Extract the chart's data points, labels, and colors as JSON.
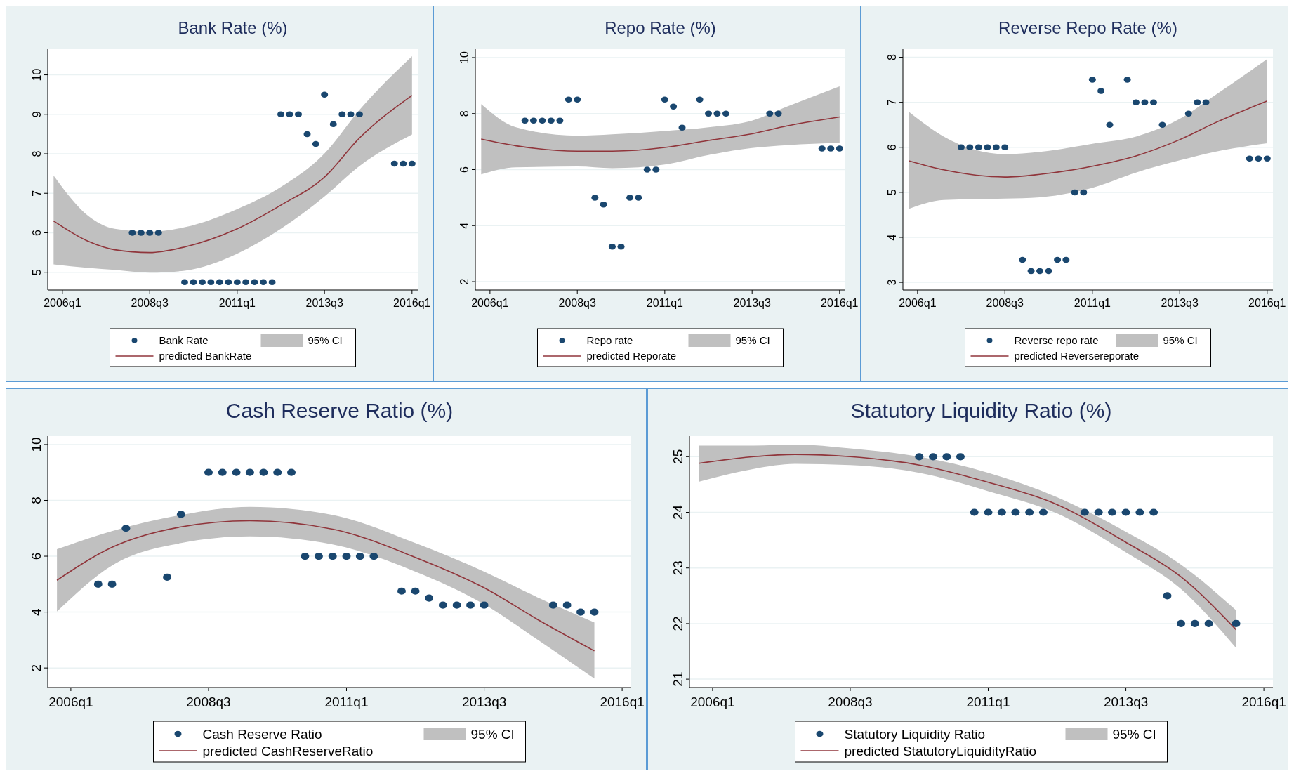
{
  "chart_data": [
    {
      "type": "scatter",
      "title": "Bank Rate (%)",
      "annotations": [
        "95% CI"
      ],
      "xlim": [
        "2005-08",
        "2016-03"
      ],
      "xticks": [
        {
          "value": "2006-01",
          "label": "2006q1"
        },
        {
          "value": "2008-07",
          "label": "2008q3"
        },
        {
          "value": "2011-01",
          "label": "2011q1"
        },
        {
          "value": "2013-07",
          "label": "2013q3"
        },
        {
          "value": "2016-01",
          "label": "2016q1"
        }
      ],
      "ylim": [
        4.55,
        10.65
      ],
      "yticks": [
        5,
        6,
        7,
        8,
        9,
        10
      ],
      "grid": "y",
      "legend": "bottom",
      "marker": "circle",
      "series": [
        {
          "name": "Bank Rate",
          "color": "#1a476f",
          "x": [
            "2008-01",
            "2008-04",
            "2008-07",
            "2008-10",
            "2009-07",
            "2009-10",
            "2010-01",
            "2010-04",
            "2010-07",
            "2010-10",
            "2011-01",
            "2011-04",
            "2011-07",
            "2011-10",
            "2012-01",
            "2012-04",
            "2012-07",
            "2012-10",
            "2013-01",
            "2013-04",
            "2013-07",
            "2013-10",
            "2014-01",
            "2014-04",
            "2014-07",
            "2015-07",
            "2015-10",
            "2016-01"
          ],
          "values": [
            6,
            6,
            6,
            6,
            4.75,
            4.75,
            4.75,
            4.75,
            4.75,
            4.75,
            4.75,
            4.75,
            4.75,
            4.75,
            4.75,
            9,
            9,
            9,
            8.5,
            8.25,
            9.5,
            8.75,
            9,
            9,
            9,
            7.75,
            7.75,
            7.75
          ]
        },
        {
          "name": "predicted BankRate",
          "type": "line",
          "marker": "none",
          "color": "#90353b",
          "x": [
            "2005-10",
            "2006-10",
            "2007-07",
            "2008-07",
            "2009-07",
            "2011-01",
            "2012-04",
            "2013-07",
            "2014-07",
            "2016-01"
          ],
          "values": [
            6.3,
            5.78,
            5.57,
            5.5,
            5.64,
            6.1,
            6.7,
            7.41,
            8.4,
            9.48
          ],
          "lower": [
            5.2,
            5.11,
            5.06,
            4.99,
            5.04,
            5.47,
            6.1,
            6.92,
            7.69,
            8.49
          ],
          "upper": [
            7.45,
            6.42,
            6.1,
            6.03,
            6.14,
            6.6,
            7.16,
            8.01,
            9.11,
            10.47
          ]
        }
      ]
    },
    {
      "type": "scatter",
      "title": "Repo Rate (%)",
      "annotations": [
        "95% CI"
      ],
      "xlim": [
        "2005-08",
        "2016-03"
      ],
      "xticks": [
        {
          "value": "2006-01",
          "label": "2006q1"
        },
        {
          "value": "2008-07",
          "label": "2008q3"
        },
        {
          "value": "2011-01",
          "label": "2011q1"
        },
        {
          "value": "2013-07",
          "label": "2013q3"
        },
        {
          "value": "2016-01",
          "label": "2016q1"
        }
      ],
      "ylim": [
        1.7,
        10.3
      ],
      "yticks": [
        2,
        4,
        6,
        8,
        10
      ],
      "grid": "y",
      "legend": "bottom",
      "marker": "circle",
      "series": [
        {
          "name": "Repo rate",
          "color": "#1a476f",
          "x": [
            "2007-01",
            "2007-04",
            "2007-07",
            "2007-10",
            "2008-01",
            "2008-04",
            "2008-07",
            "2009-01",
            "2009-04",
            "2009-07",
            "2009-10",
            "2010-01",
            "2010-04",
            "2010-07",
            "2010-10",
            "2011-01",
            "2011-04",
            "2011-07",
            "2012-01",
            "2012-04",
            "2012-07",
            "2012-10",
            "2014-01",
            "2014-04",
            "2015-07",
            "2015-10",
            "2016-01"
          ],
          "values": [
            7.75,
            7.75,
            7.75,
            7.75,
            7.75,
            8.5,
            8.5,
            5,
            4.75,
            3.25,
            3.25,
            5,
            5,
            6,
            6,
            8.5,
            8.25,
            7.5,
            8.5,
            8,
            8,
            8,
            8,
            8,
            6.75,
            6.75,
            6.75
          ]
        },
        {
          "name": "predicted Reporate",
          "type": "line",
          "marker": "none",
          "color": "#90353b",
          "x": [
            "2005-10",
            "2006-10",
            "2008-07",
            "2009-07",
            "2011-01",
            "2012-04",
            "2013-07",
            "2014-07",
            "2016-01"
          ],
          "values": [
            7.09,
            6.85,
            6.66,
            6.66,
            6.79,
            7.04,
            7.28,
            7.56,
            7.88
          ],
          "lower": [
            5.83,
            6.08,
            6.11,
            6.05,
            6.18,
            6.52,
            6.77,
            6.87,
            6.95
          ],
          "upper": [
            8.34,
            7.51,
            7.21,
            7.26,
            7.38,
            7.51,
            7.75,
            8.25,
            8.97
          ]
        }
      ]
    },
    {
      "type": "scatter",
      "title": "Reverse Repo Rate (%)",
      "annotations": [
        "95% CI"
      ],
      "xlim": [
        "2005-08",
        "2016-03"
      ],
      "xticks": [
        {
          "value": "2006-01",
          "label": "2006q1"
        },
        {
          "value": "2008-07",
          "label": "2008q3"
        },
        {
          "value": "2011-01",
          "label": "2011q1"
        },
        {
          "value": "2013-07",
          "label": "2013q3"
        },
        {
          "value": "2016-01",
          "label": "2016q1"
        }
      ],
      "ylim": [
        2.83,
        8.18
      ],
      "yticks": [
        3,
        4,
        5,
        6,
        7,
        8
      ],
      "grid": "y",
      "legend": "bottom",
      "marker": "circle",
      "series": [
        {
          "name": "Reverse repo rate",
          "color": "#1a476f",
          "x": [
            "2007-04",
            "2007-07",
            "2007-10",
            "2008-01",
            "2008-04",
            "2008-07",
            "2009-01",
            "2009-04",
            "2009-07",
            "2009-10",
            "2010-01",
            "2010-04",
            "2010-07",
            "2010-10",
            "2011-01",
            "2011-04",
            "2011-07",
            "2012-01",
            "2012-04",
            "2012-07",
            "2012-10",
            "2013-01",
            "2013-10",
            "2014-01",
            "2014-04",
            "2015-07",
            "2015-10",
            "2016-01"
          ],
          "values": [
            6,
            6,
            6,
            6,
            6,
            6,
            3.5,
            3.25,
            3.25,
            3.25,
            3.5,
            3.5,
            5,
            5,
            7.5,
            7.25,
            6.5,
            7.5,
            7,
            7,
            7,
            6.5,
            6.75,
            7,
            7,
            5.75,
            5.75,
            5.75
          ]
        },
        {
          "name": "predicted Reversereporate",
          "type": "line",
          "marker": "none",
          "color": "#90353b",
          "x": [
            "2005-10",
            "2006-10",
            "2008-07",
            "2009-07",
            "2011-01",
            "2012-04",
            "2013-07",
            "2014-07",
            "2016-01"
          ],
          "values": [
            5.7,
            5.5,
            5.34,
            5.4,
            5.58,
            5.81,
            6.17,
            6.54,
            7.03
          ],
          "lower": [
            4.63,
            4.83,
            4.86,
            4.89,
            5.1,
            5.44,
            5.71,
            5.9,
            6.09
          ],
          "upper": [
            6.79,
            6.24,
            5.85,
            5.9,
            6.08,
            6.24,
            6.63,
            7.15,
            7.96
          ]
        }
      ]
    },
    {
      "type": "scatter",
      "title": "Cash Reserve Ratio (%)",
      "annotations": [
        "95% CI"
      ],
      "xlim": [
        "2005-08",
        "2016-03"
      ],
      "xticks": [
        {
          "value": "2006-01",
          "label": "2006q1"
        },
        {
          "value": "2008-07",
          "label": "2008q3"
        },
        {
          "value": "2011-01",
          "label": "2011q1"
        },
        {
          "value": "2013-07",
          "label": "2013q3"
        },
        {
          "value": "2016-01",
          "label": "2016q1"
        }
      ],
      "ylim": [
        1.3,
        10.3
      ],
      "yticks": [
        2,
        4,
        6,
        8,
        10
      ],
      "grid": "y",
      "legend": "bottom",
      "marker": "circle",
      "series": [
        {
          "name": "Cash Reserve Ratio",
          "color": "#1a476f",
          "x": [
            "2006-07",
            "2006-10",
            "2007-01",
            "2007-10",
            "2008-01",
            "2008-07",
            "2008-10",
            "2009-01",
            "2009-04",
            "2009-07",
            "2009-10",
            "2010-01",
            "2010-04",
            "2010-07",
            "2010-10",
            "2011-01",
            "2011-04",
            "2011-07",
            "2012-01",
            "2012-04",
            "2012-07",
            "2012-10",
            "2013-01",
            "2013-04",
            "2013-07",
            "2014-10",
            "2015-01",
            "2015-04",
            "2015-07"
          ],
          "values": [
            5,
            5,
            7,
            5.25,
            7.5,
            9,
            9,
            9,
            9,
            9,
            9,
            9,
            6,
            6,
            6,
            6,
            6,
            6,
            4.75,
            4.75,
            4.5,
            4.25,
            4.25,
            4.25,
            4.25,
            4.25,
            4.25,
            4,
            4
          ]
        },
        {
          "name": "predicted CashReserveRatio",
          "type": "line",
          "marker": "none",
          "color": "#90353b",
          "x": [
            "2005-10",
            "2006-10",
            "2008-01",
            "2009-04",
            "2010-10",
            "2012-04",
            "2013-07",
            "2014-07",
            "2015-07"
          ],
          "values": [
            5.14,
            6.32,
            7.05,
            7.27,
            6.97,
            5.96,
            4.87,
            3.7,
            2.61
          ],
          "lower": [
            4.02,
            5.67,
            6.47,
            6.71,
            6.42,
            5.45,
            4.28,
            2.97,
            1.62
          ],
          "upper": [
            6.25,
            6.9,
            7.48,
            7.77,
            7.48,
            6.47,
            5.45,
            4.5,
            3.63
          ]
        }
      ]
    },
    {
      "type": "scatter",
      "title": "Statutory Liquidity Ratio (%)",
      "annotations": [
        "95% CI"
      ],
      "xlim": [
        "2005-08",
        "2016-03"
      ],
      "xticks": [
        {
          "value": "2006-01",
          "label": "2006q1"
        },
        {
          "value": "2008-07",
          "label": "2008q3"
        },
        {
          "value": "2011-01",
          "label": "2011q1"
        },
        {
          "value": "2013-07",
          "label": "2013q3"
        },
        {
          "value": "2016-01",
          "label": "2016q1"
        }
      ],
      "ylim": [
        20.85,
        25.37
      ],
      "yticks": [
        21,
        22,
        23,
        24,
        25
      ],
      "grid": "y",
      "legend": "bottom",
      "marker": "circle",
      "series": [
        {
          "name": "Statutory Liquidity Ratio",
          "color": "#1a476f",
          "x": [
            "2009-10",
            "2010-01",
            "2010-04",
            "2010-07",
            "2010-10",
            "2011-01",
            "2011-04",
            "2011-07",
            "2011-10",
            "2012-01",
            "2012-10",
            "2013-01",
            "2013-04",
            "2013-07",
            "2013-10",
            "2014-01",
            "2014-04",
            "2014-07",
            "2014-10",
            "2015-01",
            "2015-07"
          ],
          "values": [
            25,
            25,
            25,
            25,
            24,
            24,
            24,
            24,
            24,
            24,
            24,
            24,
            24,
            24,
            24,
            24,
            22.5,
            22,
            22,
            22,
            22
          ]
        },
        {
          "name": "predicted StatutoryLiquidityRatio",
          "type": "line",
          "marker": "none",
          "color": "#90353b",
          "x": [
            "2005-10",
            "2006-10",
            "2007-07",
            "2008-07",
            "2009-10",
            "2011-01",
            "2012-04",
            "2013-07",
            "2014-07",
            "2015-07"
          ],
          "values": [
            24.88,
            25,
            25.04,
            25,
            24.85,
            24.54,
            24.14,
            23.46,
            22.84,
            21.89
          ],
          "lower": [
            24.55,
            24.78,
            24.87,
            24.85,
            24.71,
            24.38,
            23.98,
            23.28,
            22.62,
            21.56
          ],
          "upper": [
            25.2,
            25.2,
            25.22,
            25.15,
            25,
            24.71,
            24.27,
            23.65,
            23.06,
            22.24
          ]
        }
      ]
    }
  ]
}
